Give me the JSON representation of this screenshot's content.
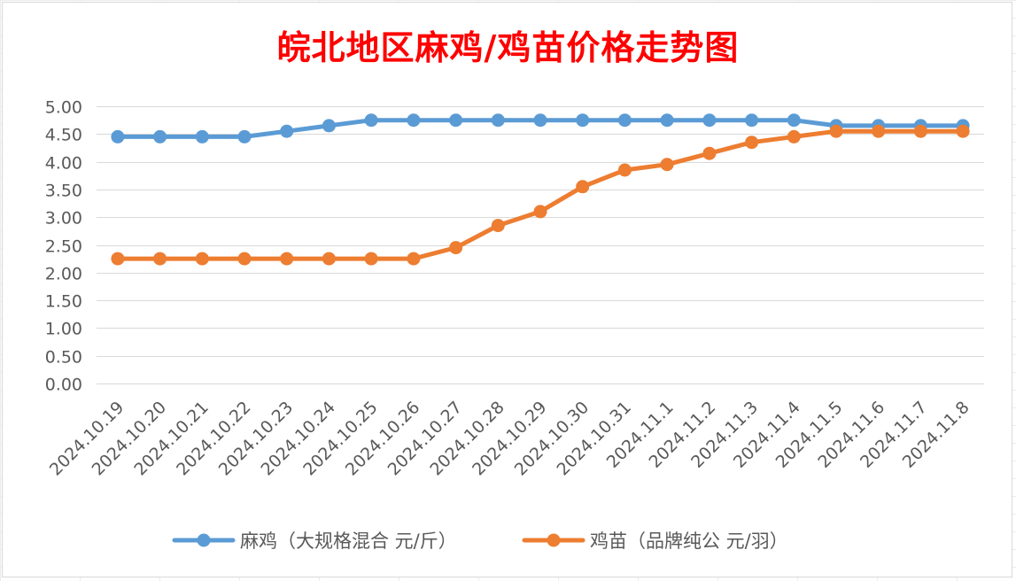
{
  "chart_data": {
    "type": "line",
    "title": "皖北地区麻鸡/鸡苗价格走势图",
    "categories": [
      "2024.10.19",
      "2024.10.20",
      "2024.10.21",
      "2024.10.22",
      "2024.10.23",
      "2024.10.24",
      "2024.10.25",
      "2024.10.26",
      "2024.10.27",
      "2024.10.28",
      "2024.10.29",
      "2024.10.30",
      "2024.10.31",
      "2024.11.1",
      "2024.11.2",
      "2024.11.3",
      "2024.11.4",
      "2024.11.5",
      "2024.11.6",
      "2024.11.7",
      "2024.11.8"
    ],
    "yticks": [
      "0.00",
      "0.50",
      "1.00",
      "1.50",
      "2.00",
      "2.50",
      "3.00",
      "3.50",
      "4.00",
      "4.50",
      "5.00"
    ],
    "ylim": [
      0,
      5
    ],
    "grid": true,
    "legend_position": "bottom",
    "series": [
      {
        "name": "麻鸡（大规格混合 元/斤）",
        "color": "#5b9bd5",
        "values": [
          4.45,
          4.45,
          4.45,
          4.45,
          4.55,
          4.65,
          4.75,
          4.75,
          4.75,
          4.75,
          4.75,
          4.75,
          4.75,
          4.75,
          4.75,
          4.75,
          4.75,
          4.65,
          4.65,
          4.65,
          4.65
        ]
      },
      {
        "name": "鸡苗（品牌纯公 元/羽）",
        "color": "#ed7d31",
        "values": [
          2.25,
          2.25,
          2.25,
          2.25,
          2.25,
          2.25,
          2.25,
          2.25,
          2.45,
          2.85,
          3.1,
          3.55,
          3.85,
          3.95,
          4.15,
          4.35,
          4.45,
          4.55,
          4.55,
          4.55,
          4.55
        ]
      }
    ]
  }
}
